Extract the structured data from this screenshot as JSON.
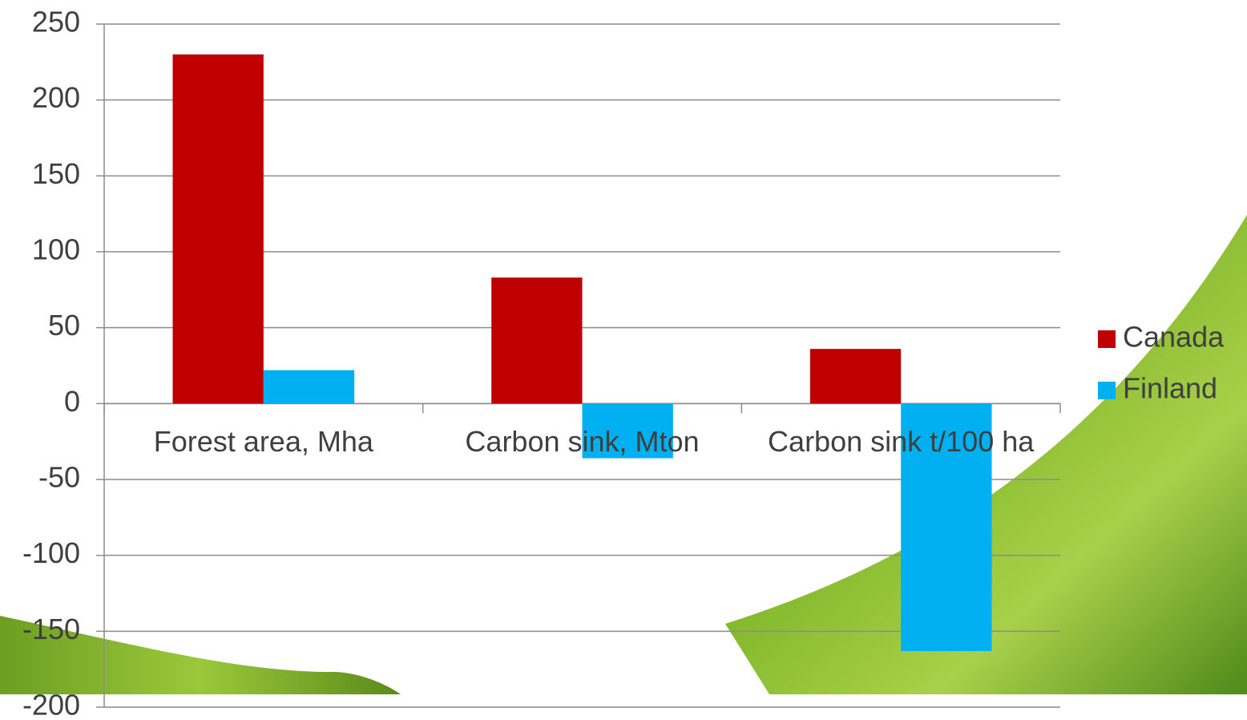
{
  "chart_data": {
    "type": "bar",
    "categories": [
      "Forest area, Mha",
      "Carbon sink, Mton",
      "Carbon sink t/100 ha"
    ],
    "series": [
      {
        "name": "Canada",
        "color": "#c00000",
        "values": [
          230,
          83,
          36
        ]
      },
      {
        "name": "Finland",
        "color": "#00b0f0",
        "values": [
          22,
          -36,
          -163
        ]
      }
    ],
    "ylim": [
      -200,
      250
    ],
    "yticks": [
      -200,
      -150,
      -100,
      -50,
      0,
      50,
      100,
      150,
      200,
      250
    ],
    "grid": true,
    "legend": "right"
  }
}
